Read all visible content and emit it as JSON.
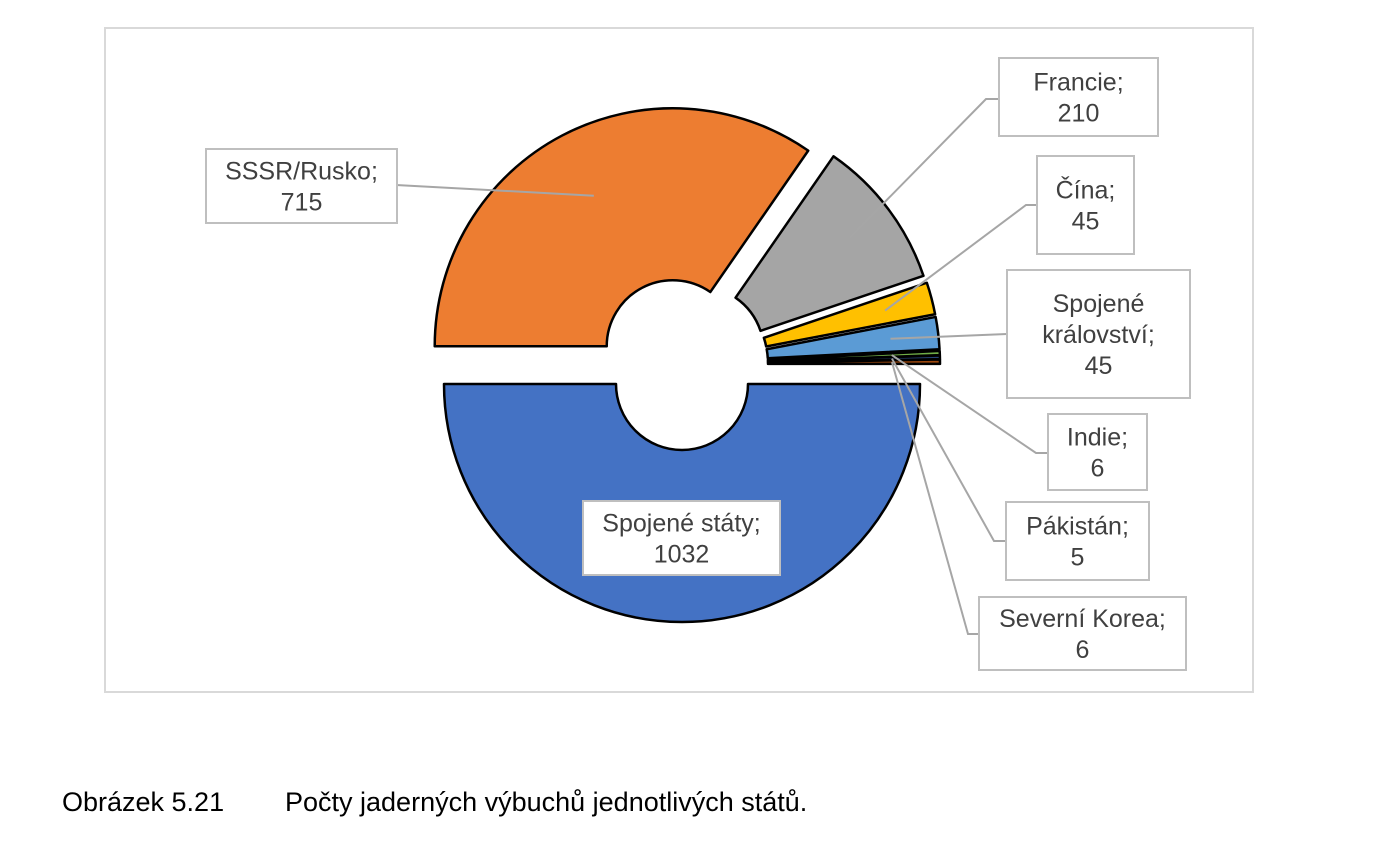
{
  "chart_data": {
    "type": "pie",
    "variant": "exploded-doughnut",
    "categories": [
      "Spojené státy",
      "SSSR/Rusko",
      "Francie",
      "Čína",
      "Spojené království",
      "Indie",
      "Pákistán",
      "Severní Korea"
    ],
    "values": [
      1032,
      715,
      210,
      45,
      45,
      6,
      5,
      6
    ],
    "labels": [
      [
        "Spojené státy;",
        "1032"
      ],
      [
        "SSSR/Rusko;",
        "715"
      ],
      [
        "Francie;",
        "210"
      ],
      [
        "Čína;",
        "45"
      ],
      [
        "Spojené",
        "království;",
        "45"
      ],
      [
        "Indie;",
        "6"
      ],
      [
        "Pákistán;",
        "5"
      ],
      [
        "Severní Korea;",
        "6"
      ]
    ],
    "colors": [
      "#4472c4",
      "#ed7d31",
      "#a5a5a5",
      "#ffc000",
      "#5b9bd5",
      "#70ad47",
      "#264478",
      "#9e480e"
    ],
    "legend": "none",
    "grid": false
  },
  "caption": {
    "number": "Obrázek 5.21",
    "text": "Počty jaderných výbuchů jednotlivých států."
  }
}
